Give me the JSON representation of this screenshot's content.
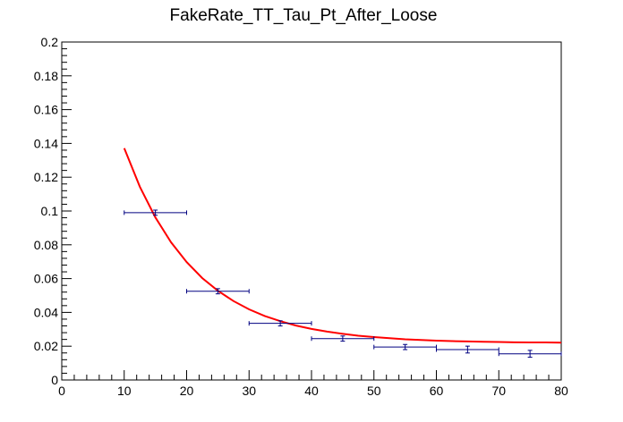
{
  "chart_data": {
    "type": "scatter",
    "title": "FakeRate_TT_Tau_Pt_After_Loose",
    "xlabel": "",
    "ylabel": "",
    "xlim": [
      0,
      80
    ],
    "ylim": [
      0,
      0.2
    ],
    "x_ticks": [
      0,
      10,
      20,
      30,
      40,
      50,
      60,
      70,
      80
    ],
    "x_tick_labels": [
      "0",
      "10",
      "20",
      "30",
      "40",
      "50",
      "60",
      "70",
      "80"
    ],
    "y_ticks": [
      0,
      0.02,
      0.04,
      0.06,
      0.08,
      0.1,
      0.12,
      0.14,
      0.16,
      0.18,
      0.2
    ],
    "y_tick_labels": [
      "0",
      "0.02",
      "0.04",
      "0.06",
      "0.08",
      "0.1",
      "0.12",
      "0.14",
      "0.16",
      "0.18",
      "0.2"
    ],
    "grid": false,
    "legend": false,
    "series": [
      {
        "points": [
          {
            "x": 15,
            "xerr": 5,
            "y": 0.099,
            "yerr": 0.001
          },
          {
            "x": 25,
            "xerr": 5,
            "y": 0.0525,
            "yerr": 0.001
          },
          {
            "x": 35,
            "xerr": 5,
            "y": 0.0335,
            "yerr": 0.001
          },
          {
            "x": 45,
            "xerr": 5,
            "y": 0.0245,
            "yerr": 0.001
          },
          {
            "x": 55,
            "xerr": 5,
            "y": 0.0195,
            "yerr": 0.001
          },
          {
            "x": 65,
            "xerr": 5,
            "y": 0.018,
            "yerr": 0.0015
          },
          {
            "x": 75,
            "xerr": 5,
            "y": 0.0155,
            "yerr": 0.0015
          }
        ],
        "color": "#000080"
      },
      {
        "type": "line",
        "x": [
          10,
          12.5,
          15,
          17.5,
          20,
          22.5,
          25,
          27.5,
          30,
          32.5,
          35,
          37.5,
          40,
          42.5,
          45,
          47.5,
          50,
          52.5,
          55,
          57.5,
          60,
          62.5,
          65,
          67.5,
          70,
          72.5,
          75,
          77.5,
          80
        ],
        "values": [
          0.1372,
          0.1144,
          0.0962,
          0.0815,
          0.0698,
          0.0603,
          0.0528,
          0.0467,
          0.0418,
          0.0379,
          0.0348,
          0.0322,
          0.0302,
          0.0286,
          0.0273,
          0.0262,
          0.0254,
          0.0247,
          0.0241,
          0.0237,
          0.0233,
          0.023,
          0.0228,
          0.0226,
          0.0225,
          0.0223,
          0.0222,
          0.0222,
          0.0221
        ],
        "color": "#ff0000"
      }
    ]
  }
}
